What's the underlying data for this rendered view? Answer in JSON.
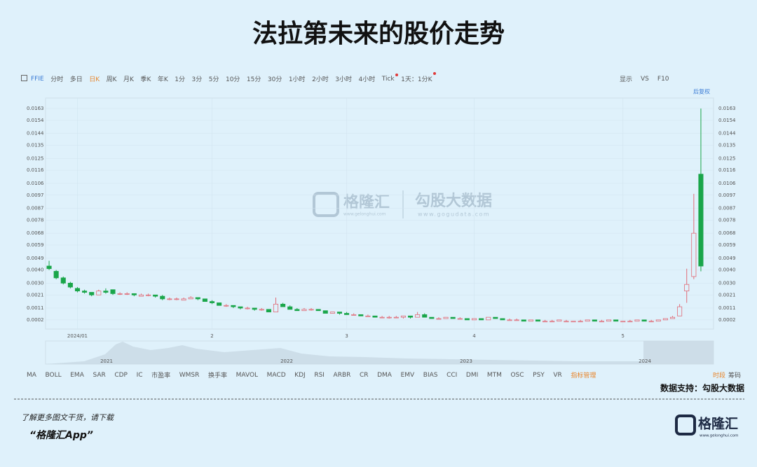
{
  "page_title": "法拉第未来的股价走势",
  "toolbar": {
    "left": [
      "FFIE",
      "分时",
      "多日",
      "日K",
      "周K",
      "月K",
      "季K",
      "年K",
      "1分",
      "3分",
      "5分",
      "10分",
      "15分",
      "30分",
      "1小时",
      "2小时",
      "3小时",
      "4小时",
      "Tick",
      "1天：1分K"
    ],
    "right": [
      "显示",
      "VS",
      "F10"
    ],
    "adjust": "后复权"
  },
  "watermark": {
    "brand": "格隆汇",
    "brand_url": "www.gelonghui.com",
    "partner": "勾股大数据",
    "partner_url": "www.gogudata.com"
  },
  "chart_data": {
    "type": "candlestick",
    "categories": [
      null,
      null,
      null,
      null,
      "2024/01",
      null,
      null,
      null,
      null,
      null,
      null,
      null,
      null,
      null,
      null,
      null,
      null,
      null,
      null,
      null,
      null,
      null,
      null,
      "2",
      null,
      null,
      null,
      null,
      null,
      null,
      null,
      null,
      null,
      null,
      null,
      null,
      null,
      null,
      null,
      null,
      null,
      null,
      "3",
      null,
      null,
      null,
      null,
      null,
      null,
      null,
      null,
      null,
      null,
      null,
      null,
      null,
      null,
      null,
      null,
      null,
      "4",
      null,
      null,
      null,
      null,
      null,
      null,
      null,
      null,
      null,
      null,
      null,
      null,
      null,
      null,
      null,
      null,
      null,
      null,
      null,
      null,
      "5",
      null,
      null,
      null,
      null,
      null,
      null,
      null,
      null,
      null,
      null,
      null
    ],
    "ohlc": [
      [
        0.0043,
        0.0047,
        0.004,
        0.0041
      ],
      [
        0.0039,
        0.004,
        0.0033,
        0.0034
      ],
      [
        0.0034,
        0.0035,
        0.0029,
        0.003
      ],
      [
        0.003,
        0.0031,
        0.0026,
        0.0027
      ],
      [
        0.0026,
        0.0027,
        0.0023,
        0.0024
      ],
      [
        0.0024,
        0.0025,
        0.0022,
        0.0023
      ],
      [
        0.0023,
        0.0023,
        0.002,
        0.0021
      ],
      [
        0.0021,
        0.0025,
        0.0021,
        0.0024
      ],
      [
        0.0024,
        0.0026,
        0.0022,
        0.0023
      ],
      [
        0.0025,
        0.0025,
        0.0021,
        0.0022
      ],
      [
        0.0022,
        0.0023,
        0.0021,
        0.0022
      ],
      [
        0.0022,
        0.0023,
        0.0021,
        0.0022
      ],
      [
        0.0022,
        0.0022,
        0.002,
        0.0021
      ],
      [
        0.002,
        0.0022,
        0.002,
        0.0021
      ],
      [
        0.0021,
        0.0022,
        0.002,
        0.0021
      ],
      [
        0.0021,
        0.0021,
        0.0019,
        0.002
      ],
      [
        0.002,
        0.0021,
        0.0017,
        0.0018
      ],
      [
        0.0018,
        0.0019,
        0.0017,
        0.0018
      ],
      [
        0.0018,
        0.0019,
        0.0017,
        0.0018
      ],
      [
        0.0017,
        0.0019,
        0.0017,
        0.0018
      ],
      [
        0.0018,
        0.002,
        0.0018,
        0.0019
      ],
      [
        0.0019,
        0.0019,
        0.0017,
        0.0018
      ],
      [
        0.0018,
        0.0018,
        0.0016,
        0.0016
      ],
      [
        0.0016,
        0.0017,
        0.0014,
        0.0015
      ],
      [
        0.0015,
        0.0015,
        0.0013,
        0.0013
      ],
      [
        0.0013,
        0.0014,
        0.0012,
        0.0013
      ],
      [
        0.0013,
        0.0013,
        0.0011,
        0.0012
      ],
      [
        0.0012,
        0.0012,
        0.001,
        0.0011
      ],
      [
        0.0011,
        0.0012,
        0.001,
        0.0011
      ],
      [
        0.0011,
        0.0011,
        0.0009,
        0.001
      ],
      [
        0.001,
        0.0011,
        0.0009,
        0.001
      ],
      [
        0.001,
        0.001,
        0.0008,
        0.0008
      ],
      [
        0.0008,
        0.0019,
        0.0008,
        0.0014
      ],
      [
        0.0014,
        0.0015,
        0.0012,
        0.0012
      ],
      [
        0.0012,
        0.0013,
        0.001,
        0.001
      ],
      [
        0.001,
        0.0011,
        0.0009,
        0.0009
      ],
      [
        0.0009,
        0.0011,
        0.0009,
        0.001
      ],
      [
        0.001,
        0.0011,
        0.0009,
        0.001
      ],
      [
        0.001,
        0.001,
        0.0009,
        0.0009
      ],
      [
        0.0009,
        0.0009,
        0.0007,
        0.0007
      ],
      [
        0.0007,
        0.0008,
        0.0007,
        0.0008
      ],
      [
        0.0008,
        0.0008,
        0.0006,
        0.0007
      ],
      [
        0.0007,
        0.0008,
        0.0006,
        0.0006
      ],
      [
        0.0006,
        0.0007,
        0.0006,
        0.0006
      ],
      [
        0.0006,
        0.0006,
        0.0005,
        0.0005
      ],
      [
        0.0005,
        0.0006,
        0.0005,
        0.0005
      ],
      [
        0.0005,
        0.0005,
        0.0004,
        0.0004
      ],
      [
        0.0004,
        0.0005,
        0.0004,
        0.0004
      ],
      [
        0.0004,
        0.0005,
        0.0003,
        0.0004
      ],
      [
        0.0004,
        0.0005,
        0.0004,
        0.0004
      ],
      [
        0.0004,
        0.0005,
        0.0003,
        0.0005
      ],
      [
        0.0005,
        0.0005,
        0.0003,
        0.0004
      ],
      [
        0.0004,
        0.0008,
        0.0004,
        0.0006
      ],
      [
        0.0006,
        0.0007,
        0.0004,
        0.0004
      ],
      [
        0.0004,
        0.0004,
        0.0003,
        0.0003
      ],
      [
        0.0003,
        0.0004,
        0.0003,
        0.0003
      ],
      [
        0.0003,
        0.0004,
        0.0003,
        0.0004
      ],
      [
        0.0004,
        0.0004,
        0.0003,
        0.0003
      ],
      [
        0.0003,
        0.0004,
        0.0003,
        0.0003
      ],
      [
        0.0003,
        0.0003,
        0.0002,
        0.0002
      ],
      [
        0.0002,
        0.0003,
        0.0002,
        0.0003
      ],
      [
        0.0003,
        0.0003,
        0.0002,
        0.0002
      ],
      [
        0.0002,
        0.0004,
        0.0002,
        0.0004
      ],
      [
        0.0004,
        0.0004,
        0.0003,
        0.0003
      ],
      [
        0.0003,
        0.0003,
        0.0002,
        0.0002
      ],
      [
        0.0002,
        0.0003,
        0.0002,
        0.0002
      ],
      [
        0.0002,
        0.0003,
        0.0002,
        0.0002
      ],
      [
        0.0002,
        0.0002,
        0.0001,
        0.0001
      ],
      [
        0.0001,
        0.0002,
        0.0001,
        0.0002
      ],
      [
        0.0002,
        0.0002,
        0.0001,
        0.0001
      ],
      [
        0.0001,
        0.0002,
        0.0001,
        0.0001
      ],
      [
        0.0001,
        0.0002,
        0.0001,
        0.0001
      ],
      [
        0.0001,
        0.0002,
        0.0001,
        0.0002
      ],
      [
        0.0001,
        0.0002,
        0.0001,
        0.0001
      ],
      [
        0.0001,
        0.0001,
        0.0001,
        0.0001
      ],
      [
        0.0001,
        0.0002,
        0.0001,
        0.0001
      ],
      [
        0.0001,
        0.0002,
        0.0001,
        0.0002
      ],
      [
        0.0002,
        0.0002,
        0.0001,
        0.0001
      ],
      [
        0.0001,
        0.0002,
        0.0001,
        0.0001
      ],
      [
        0.0001,
        0.0002,
        0.0001,
        0.0002
      ],
      [
        0.0002,
        0.0002,
        0.0001,
        0.0001
      ],
      [
        0.0001,
        0.0001,
        0.0001,
        0.0001
      ],
      [
        0.0001,
        0.0002,
        0.0001,
        0.0001
      ],
      [
        0.0001,
        0.0002,
        0.0001,
        0.0002
      ],
      [
        0.0002,
        0.0002,
        0.0001,
        0.0001
      ],
      [
        0.0001,
        0.0002,
        0.0001,
        0.0001
      ],
      [
        0.0001,
        0.0002,
        0.0001,
        0.0002
      ],
      [
        0.0002,
        0.0003,
        0.0002,
        0.0003
      ],
      [
        0.0003,
        0.0005,
        0.0003,
        0.0004
      ],
      [
        0.0005,
        0.0014,
        0.0005,
        0.0012
      ],
      [
        0.0024,
        0.0041,
        0.0015,
        0.0029
      ],
      [
        0.0035,
        0.0098,
        0.0033,
        0.0068
      ],
      [
        0.0113,
        0.0163,
        0.0039,
        0.0043
      ]
    ],
    "up_color": "#e06b77",
    "down_color": "#1aa64a",
    "ylim": [
      -0.0005,
      0.0171
    ],
    "yticks": [
      0.0002,
      0.0011,
      0.0021,
      {
        "value": 0.003,
        "label": "0.0030"
      },
      {
        "value": 0.004,
        "label": "0.0040"
      },
      0.0049,
      0.0059,
      0.0068,
      0.0078,
      0.0087,
      0.0097,
      0.0106,
      0.0116,
      0.0125,
      0.0135,
      0.0144,
      0.0154,
      0.0163
    ],
    "grid": true
  },
  "navigator": {
    "years": [
      "2021",
      "2022",
      "2023",
      "2024"
    ]
  },
  "indicators": [
    "MA",
    "BOLL",
    "EMA",
    "SAR",
    "CDP",
    "IC",
    "市盈率",
    "WMSR",
    "换手率",
    "MAVOL",
    "MACD",
    "KDJ",
    "RSI",
    "ARBR",
    "CR",
    "DMA",
    "EMV",
    "BIAS",
    "CCI",
    "DMI",
    "MTM",
    "OSC",
    "PSY",
    "VR",
    "指标管理"
  ],
  "period_tabs": [
    "时段",
    "筹码"
  ],
  "source": "数据支持：勾股大数据",
  "footer": {
    "line1": "了解更多图文干货，请下载",
    "line2": "“格隆汇App”",
    "logo": "格隆汇",
    "logo_url": "www.gelonghui.com"
  }
}
